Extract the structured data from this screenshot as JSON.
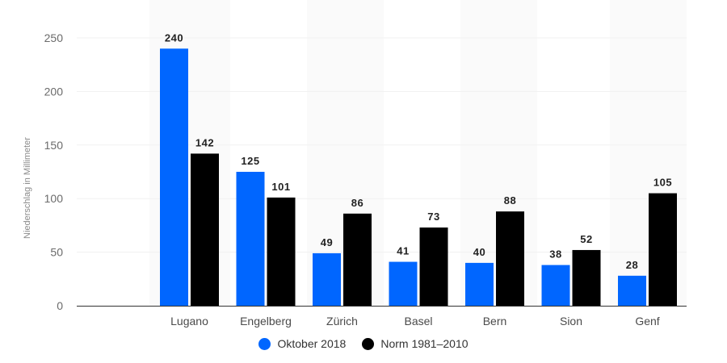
{
  "chart_data": {
    "type": "bar",
    "title": "",
    "xlabel": "",
    "ylabel": "Niederschlag in Millimeter",
    "ylim": [
      0,
      250
    ],
    "yticks": [
      0,
      50,
      100,
      150,
      200,
      250
    ],
    "grid": true,
    "legend_position": "bottom",
    "categories": [
      "Lugano",
      "Engelberg",
      "Zürich",
      "Basel",
      "Bern",
      "Sion",
      "Genf"
    ],
    "series": [
      {
        "name": "Oktober 2018",
        "color": "#0066ff",
        "values": [
          240,
          125,
          49,
          41,
          40,
          38,
          28
        ]
      },
      {
        "name": "Norm 1981–2010",
        "color": "#000000",
        "values": [
          142,
          101,
          86,
          73,
          88,
          52,
          105
        ]
      }
    ]
  }
}
